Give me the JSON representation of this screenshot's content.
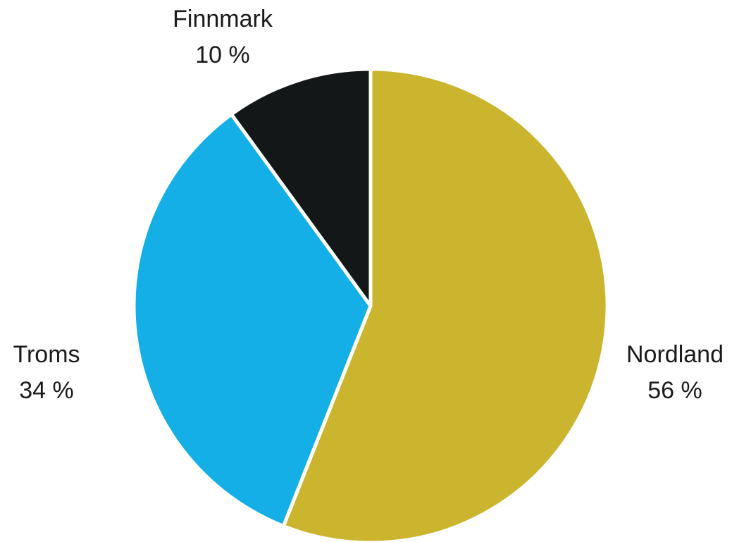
{
  "chart_data": {
    "type": "pie",
    "title": "",
    "slices": [
      {
        "label": "Nordland",
        "value": 56,
        "value_label": "56 %",
        "color": "#cbb52f"
      },
      {
        "label": "Troms",
        "value": 34,
        "value_label": "34 %",
        "color": "#13afe6"
      },
      {
        "label": "Finnmark",
        "value": 10,
        "value_label": "10 %",
        "color": "#131718"
      }
    ],
    "start": "12 o'clock",
    "direction": "clockwise",
    "legend": "none"
  }
}
